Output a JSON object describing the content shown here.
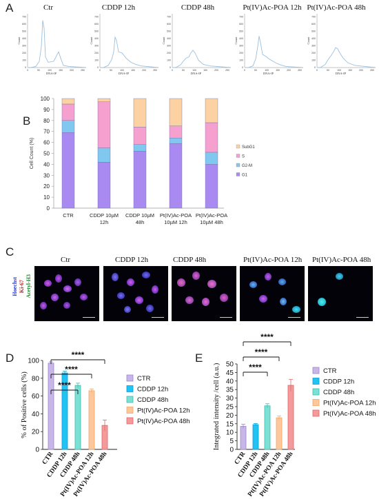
{
  "panel_labels": {
    "a": "A",
    "b": "B",
    "c": "C",
    "d": "D",
    "e": "E"
  },
  "panel_a": {
    "titles": [
      "Ctr",
      "CDDP 12h",
      "CDDP 48h",
      "Pt(IV)Ac-POA 12h",
      "Pt(IV)Ac-POA 48h"
    ],
    "ylabel": "Count",
    "xlabel": "DNA-IP",
    "yticks": [
      "700",
      "600",
      "500",
      "400",
      "300",
      "200",
      "100",
      "0"
    ],
    "xticks": [
      "0",
      "50",
      "100",
      "150",
      "200",
      "250"
    ],
    "line_color": "#9bbfdc"
  },
  "panel_c": {
    "titles": [
      "Ctr",
      "CDDP 12h",
      "CDDP 48h",
      "Pt(IV)Ac-POA 12h",
      "Pt(IV)Ac-POA 48h"
    ],
    "stains": [
      {
        "text": "Hoechst",
        "color": "#2a35c8"
      },
      {
        "text": "Ki-67",
        "color": "#d01818"
      },
      {
        "text": "Acetyl-H3",
        "color": "#1a8a2a"
      }
    ]
  },
  "chart_data": [
    {
      "id": "B",
      "type": "bar",
      "stacked": true,
      "ylabel": "Cell Count (%)",
      "ylim": [
        0,
        100
      ],
      "yticks": [
        "0",
        "10",
        "20",
        "30",
        "40",
        "50",
        "60",
        "70",
        "80",
        "90",
        "100"
      ],
      "categories": [
        [
          "CTR"
        ],
        [
          "CDDP 10µM",
          "12h"
        ],
        [
          "CDDP 10µM",
          "48h"
        ],
        [
          "Pt(IV)Ac-POA",
          "10µM 12h"
        ],
        [
          "Pt(IV)Ac-POA",
          "10µM 48h"
        ]
      ],
      "series": [
        {
          "name": "G1",
          "color": "#a98af0",
          "values": [
            69,
            42,
            52,
            59,
            40
          ]
        },
        {
          "name": "G2-M",
          "color": "#80c8f0",
          "values": [
            11,
            13,
            6,
            5,
            11
          ]
        },
        {
          "name": "S",
          "color": "#f5a0cf",
          "values": [
            15,
            42,
            16,
            11,
            27
          ]
        },
        {
          "name": "SubG1",
          "color": "#fcd2a2",
          "values": [
            5,
            3,
            26,
            25,
            22
          ]
        }
      ],
      "legend_order": [
        "SubG1",
        "S",
        "G2-M",
        "G1"
      ],
      "legend_position": "right"
    },
    {
      "id": "D",
      "type": "bar",
      "ylabel": "% of Positive cells (%)",
      "ylim": [
        0,
        100
      ],
      "yticks": [
        "0",
        "20",
        "40",
        "60",
        "80",
        "100"
      ],
      "categories": [
        "CTR",
        "CDDP 12h",
        "CDDP 48h",
        "Pt(IV)Ac-POA 12h",
        "Pt(IV)Ac-POA 48h"
      ],
      "values": [
        97,
        86,
        72,
        66,
        27
      ],
      "errors": [
        1.5,
        2,
        2.5,
        2,
        6
      ],
      "colors": [
        "#c8b6e8",
        "#22c2f2",
        "#7ce0d4",
        "#fcc79a",
        "#f59a9a"
      ],
      "edge_colors": [
        "#9c86c8",
        "#0aa0d8",
        "#3cbcb0",
        "#f0a66a",
        "#e06666"
      ],
      "significance": [
        "****",
        "****",
        "****"
      ],
      "legend_position": "right"
    },
    {
      "id": "E",
      "type": "bar",
      "ylabel": "Integrated intensity /cell (a.u.)",
      "ylim": [
        0,
        50
      ],
      "yticks": [
        "0",
        "5",
        "10",
        "15",
        "20",
        "25",
        "30",
        "35",
        "40",
        "45",
        "50"
      ],
      "categories": [
        "CTR",
        "CDDP 12h",
        "CDDP 48h",
        "Pt(IV)Ac-POA 12h",
        "Pt(IV)Ac-POA 48h"
      ],
      "values": [
        13.5,
        14.5,
        25.5,
        18.5,
        37.5
      ],
      "errors": [
        1.2,
        0.6,
        1.2,
        1.0,
        3.5
      ],
      "colors": [
        "#c8b6e8",
        "#22c2f2",
        "#7ce0d4",
        "#fcc79a",
        "#f59a9a"
      ],
      "edge_colors": [
        "#9c86c8",
        "#0aa0d8",
        "#3cbcb0",
        "#f0a66a",
        "#e06666"
      ],
      "significance": [
        "****",
        "****",
        "****"
      ],
      "legend_position": "right"
    }
  ]
}
